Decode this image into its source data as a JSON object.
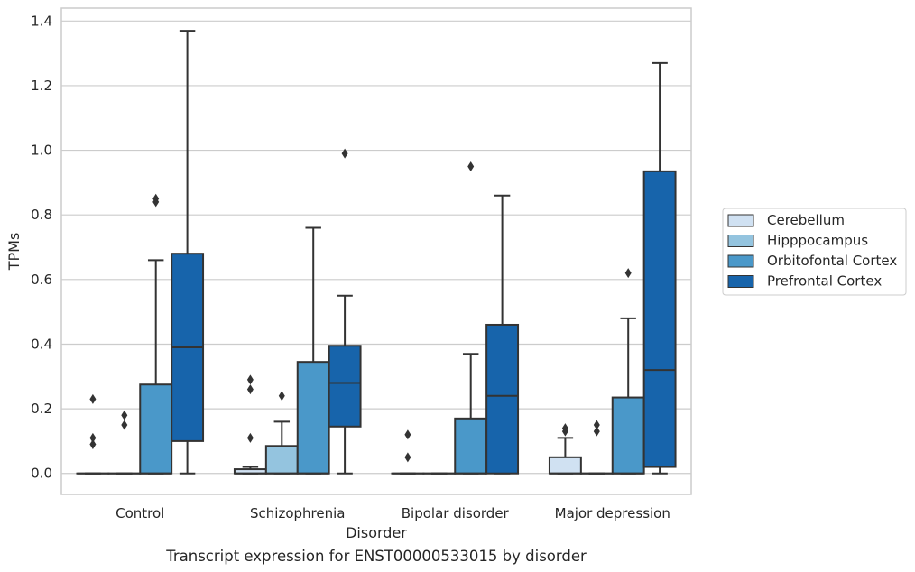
{
  "chart_data": {
    "type": "box",
    "xlabel": "Disorder",
    "ylabel": "TPMs",
    "caption": "Transcript expression for ENST00000533015 by disorder",
    "ylim": [
      -0.065,
      1.44
    ],
    "yticks": [
      0.0,
      0.2,
      0.4,
      0.6,
      0.8,
      1.0,
      1.2,
      1.4
    ],
    "ytick_labels": [
      "0.0",
      "0.2",
      "0.4",
      "0.6",
      "0.8",
      "1.0",
      "1.2",
      "1.4"
    ],
    "grid": "horizontal",
    "legend_position": "right",
    "categories": [
      "Control",
      "Schizophrenia",
      "Bipolar disorder",
      "Major depression"
    ],
    "series": [
      {
        "name": "Cerebellum",
        "color": "#d0e1f2",
        "boxes": [
          {
            "whislo": 0.0,
            "q1": 0.0,
            "med": 0.0,
            "q3": 0.0,
            "whishi": 0.0,
            "fliers": [
              0.09,
              0.11,
              0.23
            ]
          },
          {
            "whislo": 0.0,
            "q1": 0.0,
            "med": 0.0,
            "q3": 0.013,
            "whishi": 0.02,
            "fliers": [
              0.11,
              0.26,
              0.29
            ]
          },
          {
            "whislo": 0.0,
            "q1": 0.0,
            "med": 0.0,
            "q3": 0.0,
            "whishi": 0.0,
            "fliers": [
              0.05,
              0.12
            ]
          },
          {
            "whislo": 0.0,
            "q1": 0.0,
            "med": 0.0,
            "q3": 0.05,
            "whishi": 0.11,
            "fliers": [
              0.13,
              0.14
            ]
          }
        ]
      },
      {
        "name": "Hipppocampus",
        "color": "#94c4df",
        "boxes": [
          {
            "whislo": 0.0,
            "q1": 0.0,
            "med": 0.0,
            "q3": 0.0,
            "whishi": 0.0,
            "fliers": [
              0.15,
              0.18
            ]
          },
          {
            "whislo": 0.0,
            "q1": 0.0,
            "med": 0.0,
            "q3": 0.085,
            "whishi": 0.16,
            "fliers": [
              0.24
            ]
          },
          {
            "whislo": 0.0,
            "q1": 0.0,
            "med": 0.0,
            "q3": 0.0,
            "whishi": 0.0,
            "fliers": []
          },
          {
            "whislo": 0.0,
            "q1": 0.0,
            "med": 0.0,
            "q3": 0.0,
            "whishi": 0.0,
            "fliers": [
              0.13,
              0.15
            ]
          }
        ]
      },
      {
        "name": "Orbitofontal Cortex",
        "color": "#4a98c9",
        "boxes": [
          {
            "whislo": 0.0,
            "q1": 0.0,
            "med": 0.0,
            "q3": 0.275,
            "whishi": 0.66,
            "fliers": [
              0.84,
              0.85
            ]
          },
          {
            "whislo": 0.0,
            "q1": 0.0,
            "med": 0.0,
            "q3": 0.345,
            "whishi": 0.76,
            "fliers": []
          },
          {
            "whislo": 0.0,
            "q1": 0.0,
            "med": 0.0,
            "q3": 0.17,
            "whishi": 0.37,
            "fliers": [
              0.95
            ]
          },
          {
            "whislo": 0.0,
            "q1": 0.0,
            "med": 0.0,
            "q3": 0.235,
            "whishi": 0.48,
            "fliers": [
              0.62
            ]
          }
        ]
      },
      {
        "name": "Prefrontal Cortex",
        "color": "#1764ab",
        "boxes": [
          {
            "whislo": 0.0,
            "q1": 0.1,
            "med": 0.39,
            "q3": 0.68,
            "whishi": 1.37,
            "fliers": []
          },
          {
            "whislo": 0.0,
            "q1": 0.145,
            "med": 0.28,
            "q3": 0.395,
            "whishi": 0.55,
            "fliers": [
              0.99
            ]
          },
          {
            "whislo": 0.0,
            "q1": 0.0,
            "med": 0.24,
            "q3": 0.46,
            "whishi": 0.86,
            "fliers": []
          },
          {
            "whislo": 0.0,
            "q1": 0.02,
            "med": 0.32,
            "q3": 0.935,
            "whishi": 1.27,
            "fliers": []
          }
        ]
      }
    ]
  }
}
